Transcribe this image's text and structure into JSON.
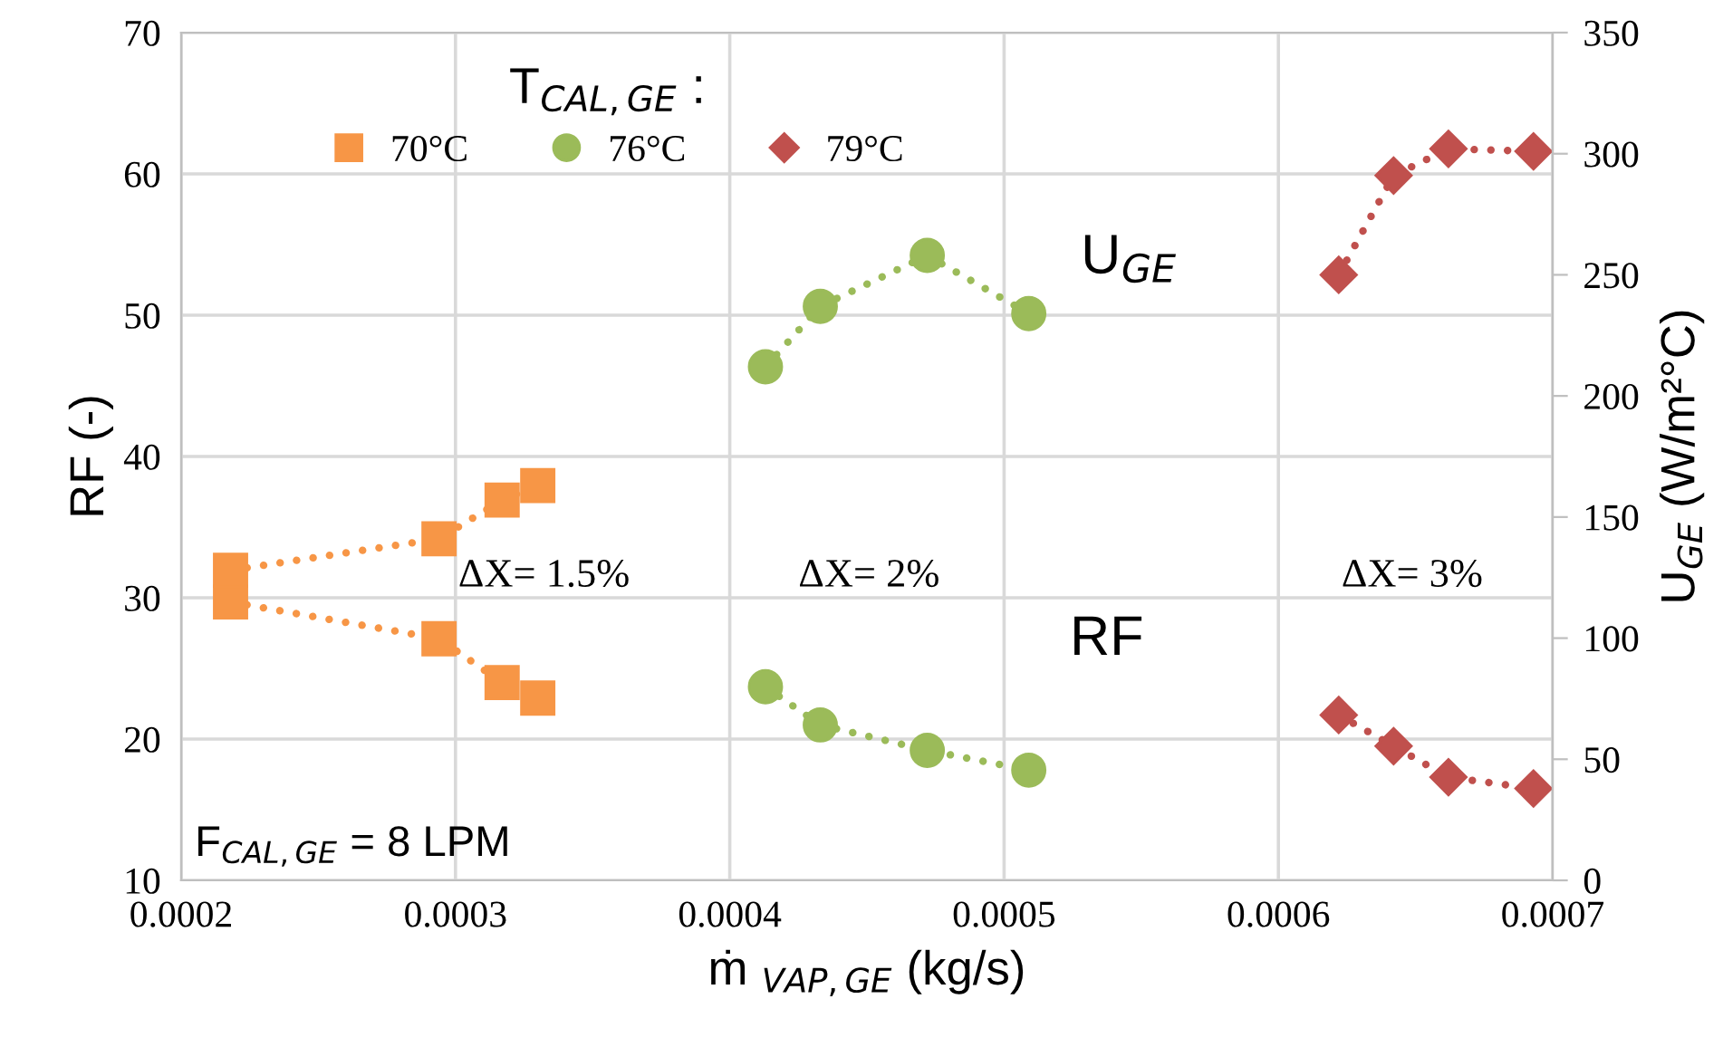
{
  "chart_data": {
    "type": "line",
    "xlabel": "ṁ $_{VAP,GE}$ (kg/s)",
    "ylabel": "RF (-)",
    "y2label": "U$_{GE}$ (W/m²°C)",
    "legend_title": "T$_{CAL,GE}$ :",
    "legend": "top left",
    "grid": true,
    "line_style": "dotted",
    "xlim": [
      0.0002,
      0.0007
    ],
    "xticks": [
      0.0002,
      0.0003,
      0.0004,
      0.0005,
      0.0006,
      0.0007
    ],
    "ylim": [
      10,
      70
    ],
    "yticks": [
      10,
      20,
      30,
      40,
      50,
      60,
      70
    ],
    "y2lim": [
      0,
      350
    ],
    "y2ticks": [
      0,
      50,
      100,
      150,
      200,
      250,
      300,
      350
    ],
    "series": [
      {
        "name": "70°C",
        "color": "#f79646",
        "marker": "square",
        "x": [
          0.000218,
          0.000294,
          0.000317,
          0.00033
        ],
        "values": [
          29.7,
          27.1,
          24.0,
          22.9
        ]
      },
      {
        "name": "76°C",
        "color": "#9bbb59",
        "marker": "circle",
        "x": [
          0.000413,
          0.000433,
          0.000472,
          0.000509
        ],
        "values": [
          23.7,
          21.0,
          19.2,
          17.8
        ]
      },
      {
        "name": "79°C",
        "color": "#c0504d",
        "marker": "diamond",
        "x": [
          0.000622,
          0.000642,
          0.000662,
          0.000693
        ],
        "values": [
          21.7,
          19.5,
          17.3,
          16.5
        ]
      },
      {
        "color": "#f79646",
        "marker": "square",
        "axis": "y2",
        "x": [
          0.000218,
          0.000294,
          0.000317,
          0.00033
        ],
        "values": [
          128,
          141,
          157,
          163
        ]
      },
      {
        "color": "#9bbb59",
        "marker": "circle",
        "axis": "y2",
        "x": [
          0.000413,
          0.000433,
          0.000472,
          0.000509
        ],
        "values": [
          212,
          237,
          258,
          234
        ]
      },
      {
        "color": "#c0504d",
        "marker": "diamond",
        "axis": "y2",
        "x": [
          0.000622,
          0.000642,
          0.000662,
          0.000693
        ],
        "values": [
          250,
          291,
          302,
          301
        ]
      }
    ],
    "annotations": [
      "U$_{GE}$",
      "RF",
      "ΔX= 1.5%",
      "ΔX= 2%",
      "ΔX= 3%",
      "F$_{CAL,GE}$ = 8 LPM"
    ]
  }
}
